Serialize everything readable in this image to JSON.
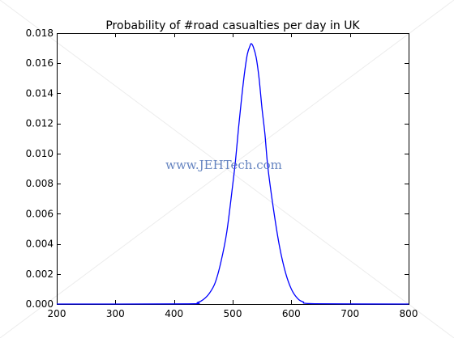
{
  "chart_data": {
    "type": "line",
    "title": "Probability of #road casualties per day in UK",
    "xlabel": "",
    "ylabel": "",
    "xlim": [
      200,
      800
    ],
    "ylim": [
      0.0,
      0.018
    ],
    "xticks": [
      200,
      300,
      400,
      500,
      600,
      700,
      800
    ],
    "yticks": [
      0.0,
      0.002,
      0.004,
      0.006,
      0.008,
      0.01,
      0.012,
      0.014,
      0.016,
      0.018
    ],
    "ytick_labels": [
      "0.000",
      "0.002",
      "0.004",
      "0.006",
      "0.008",
      "0.010",
      "0.012",
      "0.014",
      "0.016",
      "0.018"
    ],
    "xtick_labels": [
      "200",
      "300",
      "400",
      "500",
      "600",
      "700",
      "800"
    ],
    "grid": false,
    "series": [
      {
        "color": "#0000ff",
        "x": [
          200,
          420,
          440,
          450,
          460,
          470,
          480,
          490,
          500,
          505,
          510,
          515,
          520,
          525,
          530,
          532,
          535,
          540,
          545,
          550,
          555,
          560,
          570,
          580,
          590,
          600,
          610,
          620,
          640,
          800
        ],
        "y": [
          0.0,
          1e-05,
          0.0001,
          0.0003,
          0.0007,
          0.0014,
          0.0028,
          0.0048,
          0.0079,
          0.0096,
          0.0117,
          0.0136,
          0.0153,
          0.0166,
          0.0172,
          0.0173,
          0.0171,
          0.0164,
          0.015,
          0.013,
          0.0113,
          0.0091,
          0.0062,
          0.0038,
          0.0021,
          0.001,
          0.0004,
          0.00015,
          2e-05,
          0.0
        ]
      }
    ]
  },
  "watermark": {
    "text": "www.JEHTech.com",
    "color": "#4a6fb5"
  }
}
